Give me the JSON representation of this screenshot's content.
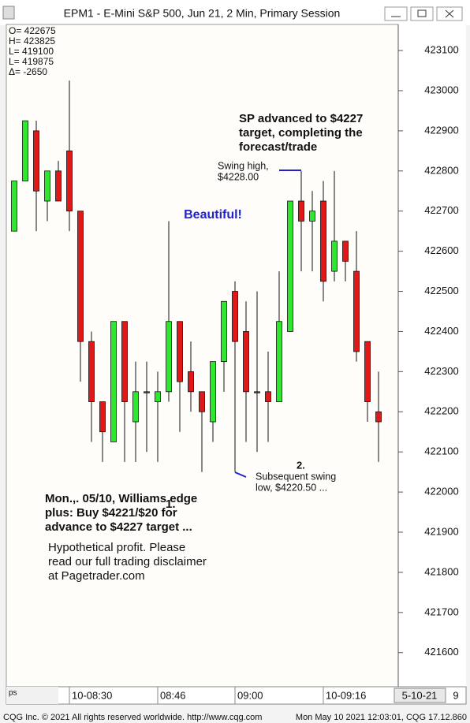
{
  "window_title": "EPM1 - E-Mini S&P 500, Jun 21, 2 Min, Primary Session",
  "chart_data": {
    "type": "candlestick",
    "readout": [
      "O= 422675",
      "H= 423825",
      "L= 419100",
      "L= 419875",
      "Δ=   -2650"
    ],
    "series": [
      {
        "name": "EPM1",
        "up_color": "#2ee82e",
        "down_color": "#e01818",
        "open": [
          422650,
          422775,
          422900,
          422725,
          422800,
          422850,
          422700,
          422375,
          422225,
          422125,
          422425,
          422175,
          422250,
          422225,
          422250,
          422425,
          422300,
          422250,
          422175,
          422325,
          422500,
          422400,
          422250,
          422250,
          422225,
          422400,
          422725,
          422675,
          422725,
          422550,
          422625,
          422550,
          422375,
          422200
        ],
        "high": [
          422775,
          422925,
          422925,
          422800,
          422825,
          423025,
          422700,
          422400,
          422225,
          422425,
          422425,
          422325,
          422325,
          422300,
          422675,
          422425,
          422375,
          422250,
          422325,
          422475,
          422525,
          422475,
          422500,
          422350,
          422550,
          422725,
          422800,
          422750,
          422775,
          422800,
          422625,
          422650,
          422375,
          422300
        ],
        "low": [
          422650,
          422775,
          422650,
          422675,
          422725,
          422650,
          422275,
          422125,
          422075,
          422125,
          422075,
          422075,
          422100,
          422075,
          422225,
          422150,
          422200,
          422050,
          422125,
          422250,
          422050,
          422125,
          422100,
          422125,
          422225,
          422400,
          422550,
          422550,
          422475,
          422525,
          422525,
          422325,
          422175,
          422075
        ],
        "close": [
          422775,
          422925,
          422750,
          422800,
          422725,
          422700,
          422375,
          422225,
          422150,
          422425,
          422225,
          422250,
          422250,
          422250,
          422425,
          422275,
          422250,
          422200,
          422325,
          422475,
          422375,
          422250,
          422250,
          422225,
          422425,
          422725,
          422675,
          422700,
          422525,
          422625,
          422575,
          422350,
          422225,
          422175
        ]
      }
    ],
    "ylim": [
      421515,
      423165
    ],
    "yticks": [
      421600,
      421700,
      421800,
      421900,
      422000,
      422100,
      422200,
      422300,
      422400,
      422500,
      422600,
      422700,
      422800,
      422900,
      423000,
      423100
    ],
    "xticks": [
      {
        "value": 5,
        "label": "10-08:30"
      },
      {
        "value": 13,
        "label": "08:46"
      },
      {
        "value": 20,
        "label": "09:00"
      },
      {
        "value": 28,
        "label": "10-09:16"
      }
    ],
    "date_box": "5-10-21",
    "corner_label": "9",
    "left_label": "ps",
    "annotations": {
      "sp": [
        "SP advanced to $4227",
        "target, completing the",
        "forecast/trade"
      ],
      "swing_high": [
        "Swing high,",
        "$4228.00"
      ],
      "beautiful": "Beautiful!",
      "num1": "1.",
      "num2": "2.",
      "swing_low": [
        "Subsequent swing",
        "low, $4220.50 ..."
      ],
      "trade": [
        "Mon.,. 05/10, Williams edge",
        "plus: Buy $4221/$20 for",
        "advance to $4227 target ..."
      ],
      "disclaimer": [
        "Hypothetical profit. Please",
        "read our full trading disclaimer",
        "at Pagetrader.com"
      ]
    }
  },
  "footer": {
    "left": "CQG Inc. © 2021 All rights reserved worldwide. http://www.cqg.com",
    "right": "Mon May 10 2021 12:03:01, CQG 17.12.860"
  }
}
